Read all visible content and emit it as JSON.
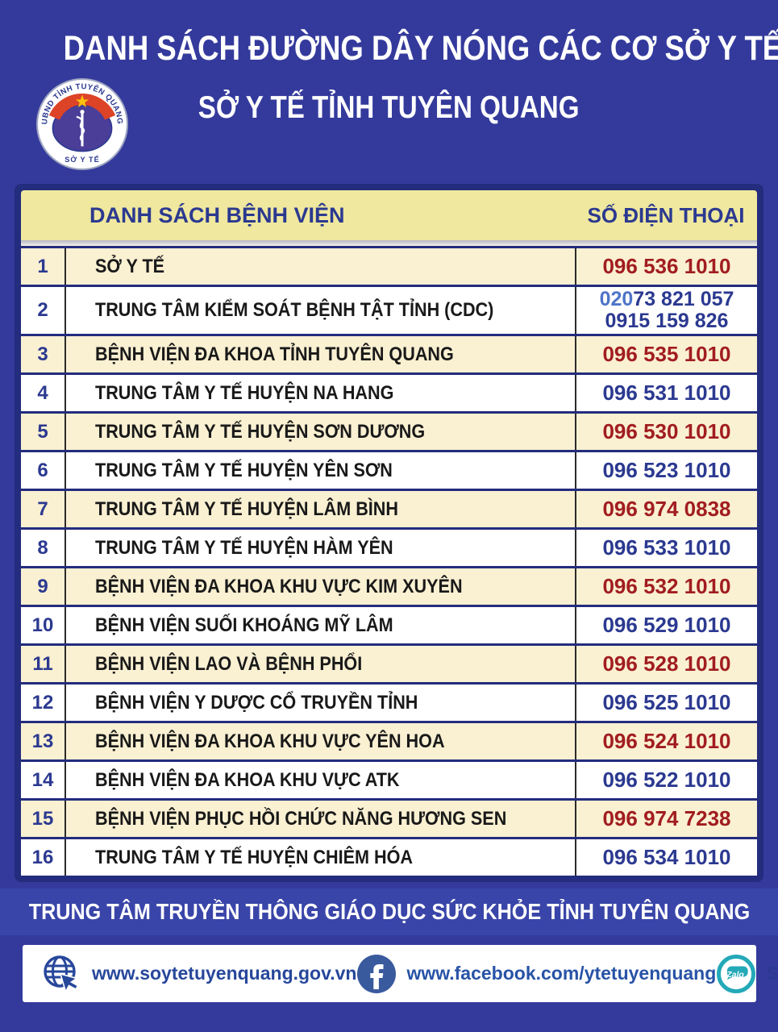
{
  "page": {
    "title": "DANH SÁCH ĐƯỜNG DÂY NÓNG CÁC CƠ SỞ Y TẾ",
    "subtitle": "SỞ Y TẾ TỈNH TUYÊN QUANG"
  },
  "logo": {
    "ring_text": "UBND TỈNH TUYÊN QUANG",
    "bottom_text": "SỞ Y TẾ"
  },
  "table": {
    "headers": {
      "name": "DANH SÁCH BỆNH VIỆN",
      "phone": "SỐ ĐIỆN THOẠI"
    },
    "rows": [
      {
        "no": "1",
        "name": "SỞ Y TẾ",
        "phones": [
          {
            "color": "red",
            "parts": [
              {
                "text": "096 536 1010"
              }
            ]
          }
        ]
      },
      {
        "no": "2",
        "name": "TRUNG TÂM KIỂM SOÁT BỆNH TẬT TỈNH (CDC)",
        "phones": [
          {
            "color": "blue",
            "parts": [
              {
                "text": "020",
                "light": true
              },
              {
                "text": "73 821 057"
              }
            ]
          },
          {
            "color": "blue",
            "parts": [
              {
                "text": "0915 159 826"
              }
            ]
          }
        ]
      },
      {
        "no": "3",
        "name": "BỆNH VIỆN ĐA KHOA TỈNH TUYÊN QUANG",
        "phones": [
          {
            "color": "red",
            "parts": [
              {
                "text": "096 535 1010"
              }
            ]
          }
        ]
      },
      {
        "no": "4",
        "name": "TRUNG TÂM Y TẾ HUYỆN NA HANG",
        "phones": [
          {
            "color": "blue",
            "parts": [
              {
                "text": "096 531 1010"
              }
            ]
          }
        ]
      },
      {
        "no": "5",
        "name": "TRUNG TÂM Y TẾ HUYỆN SƠN DƯƠNG",
        "phones": [
          {
            "color": "red",
            "parts": [
              {
                "text": "096 530 1010"
              }
            ]
          }
        ]
      },
      {
        "no": "6",
        "name": "TRUNG TÂM Y TẾ HUYỆN YÊN SƠN",
        "phones": [
          {
            "color": "blue",
            "parts": [
              {
                "text": "096 523 1010"
              }
            ]
          }
        ]
      },
      {
        "no": "7",
        "name": "TRUNG TÂM Y TẾ HUYỆN LÂM BÌNH",
        "phones": [
          {
            "color": "red",
            "parts": [
              {
                "text": "096 974 0838"
              }
            ]
          }
        ]
      },
      {
        "no": "8",
        "name": "TRUNG TÂM Y TẾ HUYỆN HÀM YÊN",
        "phones": [
          {
            "color": "blue",
            "parts": [
              {
                "text": "096 533 1010"
              }
            ]
          }
        ]
      },
      {
        "no": "9",
        "name": "BỆNH VIỆN ĐA KHOA KHU VỰC KIM XUYÊN",
        "phones": [
          {
            "color": "red",
            "parts": [
              {
                "text": "096 532 1010"
              }
            ]
          }
        ]
      },
      {
        "no": "10",
        "name": "BỆNH VIỆN SUỐI KHOÁNG MỸ LÂM",
        "phones": [
          {
            "color": "blue",
            "parts": [
              {
                "text": "096 529 1010"
              }
            ]
          }
        ]
      },
      {
        "no": "11",
        "name": "BỆNH VIỆN LAO VÀ BỆNH PHỔI",
        "phones": [
          {
            "color": "red",
            "parts": [
              {
                "text": "096 528 1010"
              }
            ]
          }
        ]
      },
      {
        "no": "12",
        "name": "BỆNH VIỆN Y DƯỢC CỔ TRUYỀN TỈNH",
        "phones": [
          {
            "color": "blue",
            "parts": [
              {
                "text": "096 525 1010"
              }
            ]
          }
        ]
      },
      {
        "no": "13",
        "name": "BỆNH VIỆN ĐA KHOA KHU VỰC YÊN HOA",
        "phones": [
          {
            "color": "red",
            "parts": [
              {
                "text": "096 524 1010"
              }
            ]
          }
        ]
      },
      {
        "no": "14",
        "name": "BỆNH VIỆN ĐA KHOA KHU VỰC ATK",
        "phones": [
          {
            "color": "blue",
            "parts": [
              {
                "text": "096 522 1010"
              }
            ]
          }
        ]
      },
      {
        "no": "15",
        "name": "BỆNH VIỆN PHỤC HỒI CHỨC NĂNG HƯƠNG SEN",
        "phones": [
          {
            "color": "red",
            "parts": [
              {
                "text": "096 974 7238"
              }
            ]
          }
        ]
      },
      {
        "no": "16",
        "name": "TRUNG TÂM Y TẾ HUYỆN CHIÊM HÓA",
        "phones": [
          {
            "color": "blue",
            "parts": [
              {
                "text": "096 534 1010"
              }
            ]
          }
        ]
      }
    ]
  },
  "footer": {
    "banner": "TRUNG TÂM TRUYỀN THÔNG GIÁO DỤC SỨC KHỎE TỈNH TUYÊN QUANG"
  },
  "links": {
    "website": "www.soytetuyenquang.gov.vn",
    "facebook": "www.facebook.com/ytetuyenquang",
    "zalo_label": "Zalo",
    "zalo_name": "Sở Y tế Tuyên Quang"
  },
  "colors": {
    "background": "#343A9C",
    "table_border": "#232C7D",
    "header_band": "#EFE89E",
    "row_cream": "#FAF0D2",
    "row_white": "#FFFFFF",
    "phone_red": "#A11D20",
    "phone_blue": "#2B3990",
    "phone_prefix_light": "#4F74C9",
    "banner_blue": "#3945A8",
    "zalo_teal": "#24A9B8",
    "facebook_blue": "#3A5A9E"
  }
}
